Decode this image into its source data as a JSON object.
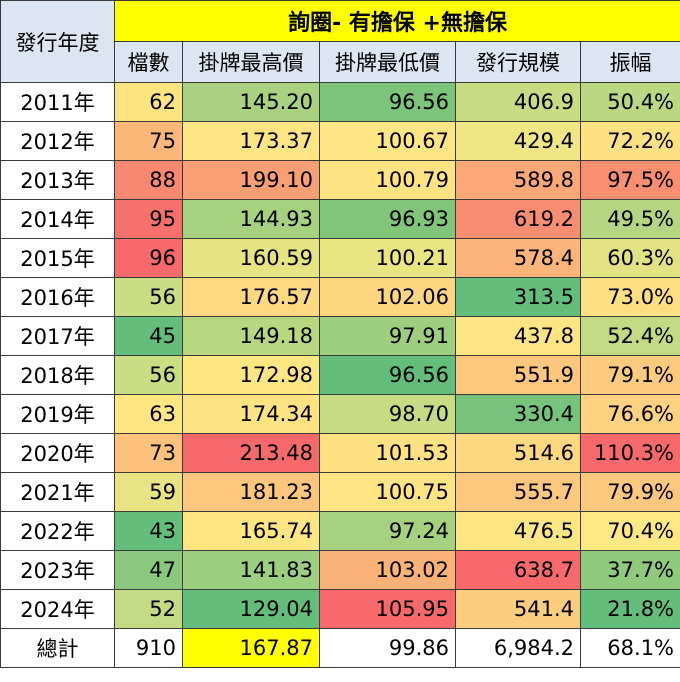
{
  "table": {
    "title": "詢圈- 有擔保 +無擔保",
    "year_header": "發行年度",
    "columns": [
      "檔數",
      "掛牌最高價",
      "掛牌最低價",
      "發行規模",
      "振幅"
    ],
    "rows": [
      {
        "year": "2011年",
        "values": [
          "62",
          "145.20",
          "96.56",
          "406.9",
          "50.4%"
        ],
        "colors": [
          "#fde480",
          "#a8d27f",
          "#7cc47a",
          "#c8dd83",
          "#bad882"
        ]
      },
      {
        "year": "2012年",
        "values": [
          "75",
          "173.37",
          "100.67",
          "429.4",
          "72.2%"
        ],
        "colors": [
          "#fcb879",
          "#fee583",
          "#ffe684",
          "#f1e684",
          "#fee281"
        ]
      },
      {
        "year": "2013年",
        "values": [
          "88",
          "199.10",
          "100.79",
          "589.8",
          "97.5%"
        ],
        "colors": [
          "#f98870",
          "#fa9f74",
          "#fee382",
          "#fba776",
          "#fa8e71"
        ]
      },
      {
        "year": "2014年",
        "values": [
          "95",
          "144.93",
          "96.93",
          "619.2",
          "49.5%"
        ],
        "colors": [
          "#f8706c",
          "#a6d17f",
          "#80c57a",
          "#f98d72",
          "#b4d682"
        ]
      },
      {
        "year": "2015年",
        "values": [
          "96",
          "160.59",
          "100.21",
          "578.4",
          "60.3%"
        ],
        "colors": [
          "#f8696b",
          "#e6e383",
          "#eae583",
          "#fcb479",
          "#e0e283"
        ]
      },
      {
        "year": "2016年",
        "values": [
          "56",
          "176.57",
          "102.06",
          "313.5",
          "73.0%"
        ],
        "colors": [
          "#c9dd83",
          "#fed981",
          "#fed680",
          "#63be7b",
          "#fedf81"
        ]
      },
      {
        "year": "2017年",
        "values": [
          "45",
          "149.18",
          "97.91",
          "437.8",
          "52.4%"
        ],
        "colors": [
          "#63be7b",
          "#b8d781",
          "#9dcf7e",
          "#fde583",
          "#c2db83"
        ]
      },
      {
        "year": "2018年",
        "values": [
          "56",
          "172.98",
          "96.56",
          "551.9",
          "79.1%"
        ],
        "colors": [
          "#c9dd83",
          "#fee683",
          "#63be7b",
          "#fdc87d",
          "#fdcb7e"
        ]
      },
      {
        "year": "2019年",
        "values": [
          "63",
          "174.34",
          "98.70",
          "330.4",
          "76.6%"
        ],
        "colors": [
          "#fee683",
          "#fee383",
          "#c5dc82",
          "#77c37c",
          "#fed280"
        ]
      },
      {
        "year": "2020年",
        "values": [
          "73",
          "213.48",
          "101.53",
          "514.6",
          "110.3%"
        ],
        "colors": [
          "#fcc27c",
          "#f8696b",
          "#fee182",
          "#fed881",
          "#f8696b"
        ]
      },
      {
        "year": "2021年",
        "values": [
          "59",
          "181.23",
          "100.75",
          "555.7",
          "79.9%"
        ],
        "colors": [
          "#e8e483",
          "#fcc77c",
          "#fee483",
          "#fdc77e",
          "#fcc87d"
        ]
      },
      {
        "year": "2022年",
        "values": [
          "43",
          "165.74",
          "97.24",
          "476.5",
          "70.4%"
        ],
        "colors": [
          "#63be7b",
          "#fee683",
          "#a6d17f",
          "#fee783",
          "#fee883"
        ]
      },
      {
        "year": "2023年",
        "values": [
          "47",
          "141.83",
          "103.02",
          "638.7",
          "37.7%"
        ],
        "colors": [
          "#89c87d",
          "#9ccf7f",
          "#fbb277",
          "#f8696b",
          "#8fca7d"
        ]
      },
      {
        "year": "2024年",
        "values": [
          "52",
          "129.04",
          "105.95",
          "541.4",
          "21.8%"
        ],
        "colors": [
          "#c3db82",
          "#63be7b",
          "#f8696b",
          "#fdcd7f",
          "#63be7b"
        ]
      }
    ],
    "total": {
      "label": "總計",
      "values": [
        "910",
        "167.87",
        "99.86",
        "6,984.2",
        "68.1%"
      ],
      "highlight_color": "#ffff00"
    },
    "colors": {
      "header_bg": "#dce6f2",
      "title_bg": "#ffff00",
      "scale_low": "#63be7b",
      "scale_mid": "#ffeb84",
      "scale_high": "#f8696b"
    }
  }
}
